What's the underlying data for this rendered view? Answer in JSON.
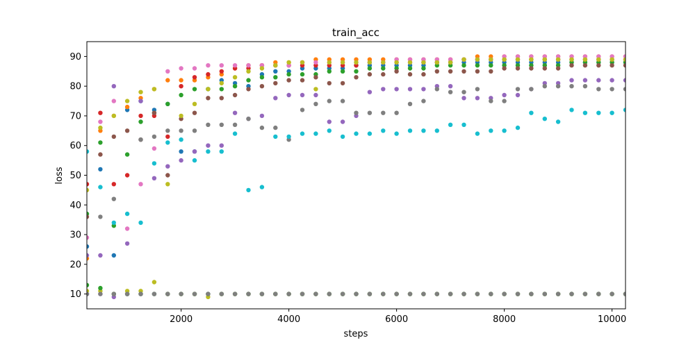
{
  "chart_data": {
    "type": "scatter",
    "title": "train_acc",
    "xlabel": "steps",
    "ylabel": "loss",
    "xlim": [
      250,
      10250
    ],
    "ylim": [
      5,
      95
    ],
    "x_ticks": [
      2000,
      4000,
      6000,
      8000,
      10000
    ],
    "y_ticks": [
      10,
      20,
      30,
      40,
      50,
      60,
      70,
      80,
      90
    ],
    "grid": false,
    "legend": "none",
    "x": [
      250,
      500,
      750,
      1000,
      1250,
      1500,
      1750,
      2000,
      2250,
      2500,
      2750,
      3000,
      3250,
      3500,
      3750,
      4000,
      4250,
      4500,
      4750,
      5000,
      5250,
      5500,
      5750,
      6000,
      6250,
      6500,
      6750,
      7000,
      7250,
      7500,
      7750,
      8000,
      8250,
      8500,
      8750,
      9000,
      9250,
      9500,
      9750,
      10000,
      10250
    ],
    "series": [
      {
        "color": "#1f77b4",
        "values": [
          26,
          52,
          23,
          72,
          75,
          72,
          74,
          58,
          58,
          79,
          82,
          81,
          80,
          84,
          85,
          85,
          86,
          86,
          86,
          86,
          87,
          87,
          87,
          87,
          87,
          87,
          88,
          88,
          88,
          88,
          88,
          88,
          88,
          88,
          88,
          88,
          88,
          88,
          88,
          88,
          88
        ]
      },
      {
        "color": "#ff7f0e",
        "values": [
          22,
          65,
          70,
          73,
          76,
          79,
          82,
          82,
          82,
          83,
          84,
          86,
          87,
          87,
          88,
          88,
          88,
          89,
          89,
          89,
          89,
          89,
          89,
          89,
          89,
          89,
          89,
          89,
          89,
          90,
          90,
          90,
          90,
          90,
          90,
          90,
          90,
          90,
          90,
          90,
          90
        ]
      },
      {
        "color": "#2ca02c",
        "values": [
          37,
          61,
          33,
          57,
          68,
          71,
          74,
          77,
          79,
          79,
          79,
          80,
          82,
          83,
          83,
          84,
          84,
          84,
          85,
          85,
          85,
          86,
          86,
          86,
          86,
          86,
          87,
          87,
          87,
          87,
          87,
          87,
          87,
          87,
          87,
          87,
          88,
          88,
          88,
          88,
          88
        ]
      },
      {
        "color": "#d62728",
        "values": [
          47,
          71,
          47,
          50,
          70,
          70,
          63,
          80,
          83,
          84,
          85,
          86,
          86,
          87,
          87,
          87,
          87,
          87,
          87,
          87,
          87,
          88,
          88,
          88,
          88,
          88,
          88,
          88,
          89,
          89,
          89,
          89,
          89,
          89,
          89,
          89,
          89,
          89,
          89,
          89,
          89
        ]
      },
      {
        "color": "#9467bd",
        "values": [
          23,
          23,
          80,
          27,
          75,
          49,
          53,
          55,
          58,
          60,
          60,
          71,
          69,
          70,
          76,
          77,
          77,
          77,
          68,
          68,
          70,
          78,
          79,
          79,
          79,
          79,
          80,
          80,
          76,
          76,
          76,
          77,
          77,
          79,
          81,
          81,
          82,
          82,
          82,
          82,
          82
        ]
      },
      {
        "color": "#8c564b",
        "values": [
          36,
          57,
          63,
          65,
          62,
          71,
          50,
          69,
          71,
          76,
          76,
          77,
          79,
          80,
          81,
          82,
          82,
          83,
          81,
          81,
          83,
          84,
          84,
          85,
          84,
          84,
          85,
          85,
          85,
          85,
          85,
          86,
          86,
          86,
          86,
          86,
          87,
          87,
          87,
          87,
          87
        ]
      },
      {
        "color": "#e377c2",
        "values": [
          29,
          68,
          75,
          32,
          47,
          59,
          85,
          86,
          86,
          87,
          87,
          87,
          87,
          87,
          87,
          87,
          88,
          88,
          88,
          88,
          88,
          88,
          88,
          89,
          89,
          89,
          89,
          89,
          89,
          89,
          89,
          90,
          90,
          90,
          90,
          90,
          90,
          90,
          90,
          90,
          90
        ]
      },
      {
        "color": "#7f7f7f",
        "values": [
          10,
          36,
          42,
          10,
          62,
          63,
          65,
          65,
          65,
          67,
          67,
          67,
          69,
          66,
          66,
          62,
          72,
          74,
          75,
          75,
          71,
          71,
          71,
          71,
          74,
          75,
          79,
          78,
          78,
          79,
          75,
          75,
          79,
          79,
          80,
          80,
          80,
          80,
          79,
          79,
          79
        ]
      },
      {
        "color": "#bcbd22",
        "values": [
          45,
          66,
          70,
          75,
          78,
          79,
          47,
          70,
          74,
          79,
          81,
          83,
          85,
          86,
          87,
          88,
          88,
          79,
          88,
          88,
          88,
          88,
          88,
          88,
          88,
          88,
          88,
          88,
          89,
          89,
          89,
          89,
          89,
          89,
          89,
          89,
          89,
          89,
          89,
          89,
          89
        ]
      },
      {
        "color": "#17becf",
        "values": [
          58,
          46,
          34,
          37,
          34,
          54,
          61,
          62,
          55,
          58,
          58,
          64,
          45,
          46,
          63,
          63,
          64,
          64,
          65,
          63,
          64,
          64,
          65,
          64,
          65,
          65,
          65,
          67,
          67,
          64,
          65,
          65,
          66,
          71,
          69,
          68,
          72,
          71,
          71,
          71,
          72
        ]
      },
      {
        "color": "#9467bd",
        "values": [
          10,
          10,
          9,
          10,
          10,
          10,
          10,
          10,
          10,
          10,
          10,
          10,
          10,
          10,
          10,
          10,
          10,
          10,
          10,
          10,
          10,
          10,
          10,
          10,
          10,
          10,
          10,
          10,
          10,
          10,
          10,
          10,
          10,
          10,
          10,
          10,
          10,
          10,
          10,
          10,
          10
        ]
      },
      {
        "color": "#bcbd22",
        "values": [
          11,
          11,
          10,
          11,
          11,
          14,
          10,
          10,
          10,
          9,
          10,
          10,
          10,
          10,
          10,
          10,
          10,
          10,
          10,
          10,
          10,
          10,
          10,
          10,
          10,
          10,
          10,
          10,
          10,
          10,
          10,
          10,
          10,
          10,
          10,
          10,
          10,
          10,
          10,
          10,
          10
        ]
      },
      {
        "color": "#2ca02c",
        "values": [
          13,
          12,
          10,
          10,
          10,
          10,
          10,
          10,
          10,
          10,
          10,
          10,
          10,
          10,
          10,
          10,
          10,
          10,
          10,
          10,
          10,
          10,
          10,
          10,
          10,
          10,
          10,
          10,
          10,
          10,
          10,
          10,
          10,
          10,
          10,
          10,
          10,
          10,
          10,
          10,
          10
        ]
      },
      {
        "color": "#7f7f7f",
        "values": [
          10,
          10,
          10,
          10,
          10,
          10,
          10,
          10,
          10,
          10,
          10,
          10,
          10,
          10,
          10,
          10,
          10,
          10,
          10,
          10,
          10,
          10,
          10,
          10,
          10,
          10,
          10,
          10,
          10,
          10,
          10,
          10,
          10,
          10,
          10,
          10,
          10,
          10,
          10,
          10,
          10
        ]
      }
    ]
  }
}
